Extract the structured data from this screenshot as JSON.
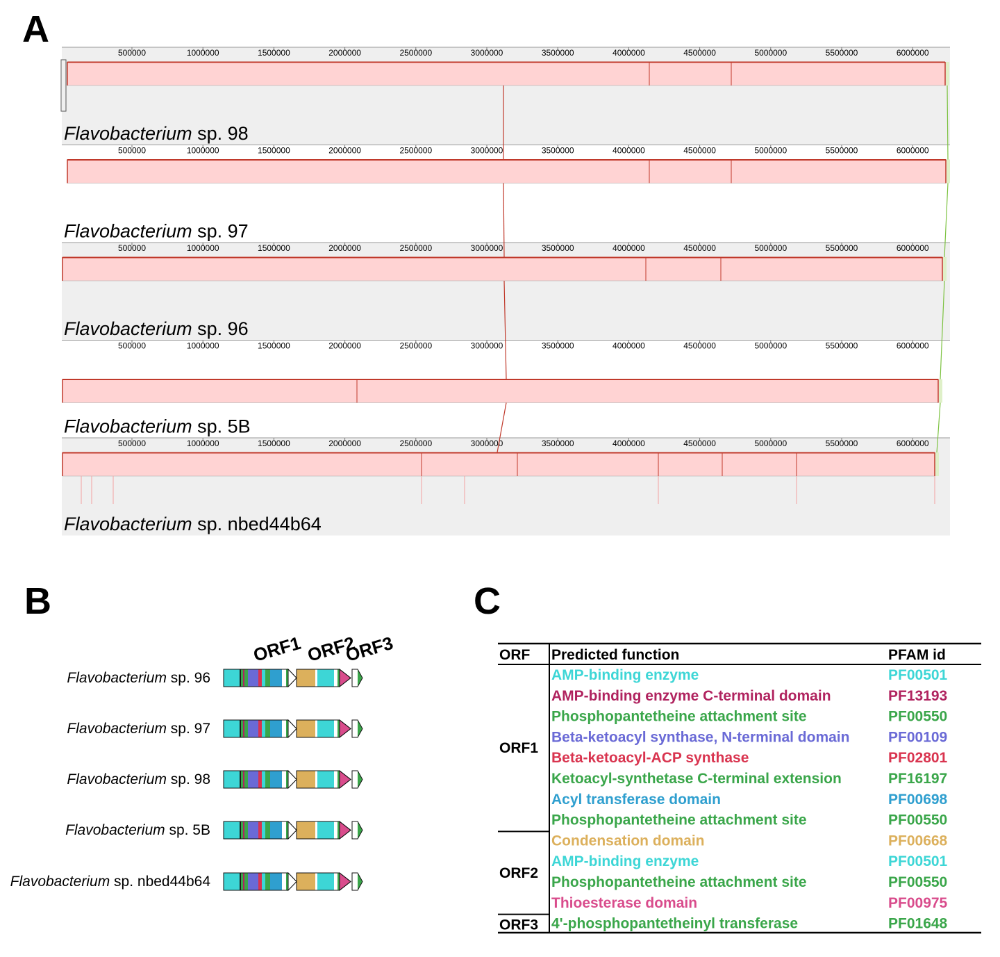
{
  "panels": {
    "a": "A",
    "b": "B",
    "c": "C"
  },
  "panel_a": {
    "ticks": [
      "500000",
      "1000000",
      "1500000",
      "2000000",
      "2500000",
      "3000000",
      "3500000",
      "4000000",
      "4500000",
      "5000000",
      "5500000",
      "6000000"
    ],
    "tick_values": [
      500000,
      1000000,
      1500000,
      2000000,
      2500000,
      3000000,
      3500000,
      4000000,
      4500000,
      5000000,
      5500000,
      6000000
    ],
    "genomes": [
      {
        "italic": "Flavobacterium",
        "rest": " sp. 98",
        "background": "#efefef",
        "block_color": "#ffd3d3",
        "edge_color": "#c0392b"
      },
      {
        "italic": "Flavobacterium",
        "rest": " sp. 97",
        "background": "#ffffff",
        "block_color": "#ffd3d3",
        "edge_color": "#c0392b"
      },
      {
        "italic": "Flavobacterium",
        "rest": " sp. 96",
        "background": "#efefef",
        "block_color": "#ffd3d3",
        "edge_color": "#c0392b"
      },
      {
        "italic": "Flavobacterium",
        "rest": " sp. 5B",
        "background": "#ffffff",
        "block_color": "#ffd3d3",
        "edge_color": "#c0392b"
      },
      {
        "italic": "Flavobacterium",
        "rest": " sp. nbed44b64",
        "background": "#efefef",
        "block_color": "#ffd3d3",
        "edge_color": "#c0392b"
      }
    ],
    "connector_colors": {
      "red": "#c0392b",
      "green": "#7cc240"
    }
  },
  "panel_b": {
    "orf_labels": [
      "ORF1",
      "ORF2",
      "ORF3"
    ],
    "strains": [
      {
        "italic": "Flavobacterium",
        "rest": " sp. 96"
      },
      {
        "italic": "Flavobacterium",
        "rest": " sp. 97"
      },
      {
        "italic": "Flavobacterium",
        "rest": " sp. 98"
      },
      {
        "italic": "Flavobacterium",
        "rest": " sp. 5B"
      },
      {
        "italic": "Flavobacterium",
        "rest": " sp. nbed44b64"
      }
    ]
  },
  "panel_c": {
    "headers": [
      "ORF",
      "Predicted function",
      "PFAM id"
    ],
    "groups": [
      {
        "orf": "ORF1",
        "rows": [
          {
            "function": "AMP-binding enzyme",
            "pfam": "PF00501",
            "color": "#3dd6d6"
          },
          {
            "function": "AMP-binding enzyme C-terminal domain",
            "pfam": "PF13193",
            "color": "#b0235f"
          },
          {
            "function": "Phosphopantetheine attachment site",
            "pfam": "PF00550",
            "color": "#3aa64a"
          },
          {
            "function": "Beta-ketoacyl synthase, N-terminal domain",
            "pfam": "PF00109",
            "color": "#6a6ad6"
          },
          {
            "function": "Beta-ketoacyl-ACP synthase",
            "pfam": "PF02801",
            "color": "#d9344f"
          },
          {
            "function": "Ketoacyl-synthetase C-terminal extension",
            "pfam": "PF16197",
            "color": "#3aa64a"
          },
          {
            "function": "Acyl transferase domain",
            "pfam": "PF00698",
            "color": "#2f9fcf"
          },
          {
            "function": "Phosphopantetheine attachment site",
            "pfam": "PF00550",
            "color": "#3aa64a"
          }
        ]
      },
      {
        "orf": "ORF2",
        "rows": [
          {
            "function": "Condensation domain",
            "pfam": "PF00668",
            "color": "#dcb05c"
          },
          {
            "function": "AMP-binding enzyme",
            "pfam": "PF00501",
            "color": "#3dd6d6"
          },
          {
            "function": "Phosphopantetheine attachment site",
            "pfam": "PF00550",
            "color": "#3aa64a"
          },
          {
            "function": "Thioesterase domain",
            "pfam": "PF00975",
            "color": "#d94c8c"
          }
        ]
      },
      {
        "orf": "ORF3",
        "rows": [
          {
            "function": "4'-phosphopantetheinyl transferase",
            "pfam": "PF01648",
            "color": "#3aa64a"
          }
        ]
      }
    ]
  }
}
